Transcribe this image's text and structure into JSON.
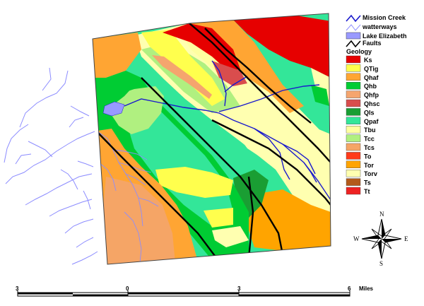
{
  "legend": {
    "mission_creek": "Mission Creek",
    "waterways": "watterways",
    "lake": "Lake Elizabeth",
    "faults": "Faults",
    "geology_title": "Geology",
    "units": [
      {
        "code": "Ks",
        "color": "#e60000"
      },
      {
        "code": "QTig",
        "color": "#ffff4d"
      },
      {
        "code": "Qhaf",
        "color": "#ffa533"
      },
      {
        "code": "Qhb",
        "color": "#00cc33"
      },
      {
        "code": "Qhfp",
        "color": "#f5a56e"
      },
      {
        "code": "Qhsc",
        "color": "#d94d4d"
      },
      {
        "code": "Qls",
        "color": "#1a9e33"
      },
      {
        "code": "Qpaf",
        "color": "#33e699"
      },
      {
        "code": "Tbu",
        "color": "#ffffa0"
      },
      {
        "code": "Tcc",
        "color": "#b0f080"
      },
      {
        "code": "Tcs",
        "color": "#f5a566"
      },
      {
        "code": "To",
        "color": "#ff3a1a"
      },
      {
        "code": "Tor",
        "color": "#ffa400"
      },
      {
        "code": "Torv",
        "color": "#ffffb0"
      },
      {
        "code": "Ts",
        "color": "#b35a1a"
      },
      {
        "code": "Tt",
        "color": "#ee2222"
      }
    ]
  },
  "scale": {
    "labels": [
      "3",
      "0",
      "3",
      "6"
    ],
    "unit": "Miles"
  },
  "compass": {
    "n": "N",
    "s": "S",
    "e": "E",
    "w": "W"
  },
  "colors": {
    "creek": "#1a1acc",
    "waterway": "#8c8cff",
    "lake": "#9999ff",
    "fault": "#000000",
    "outline": "#444444"
  }
}
